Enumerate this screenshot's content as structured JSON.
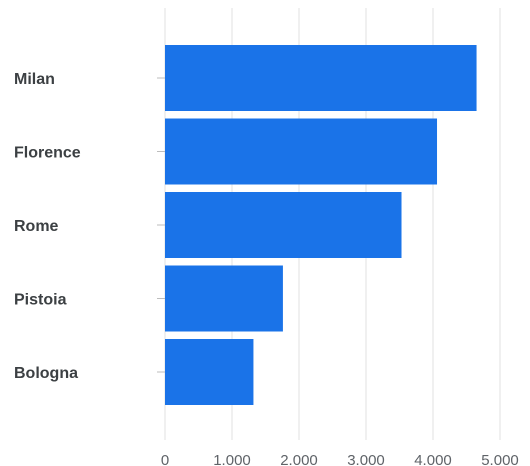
{
  "chart_data": {
    "type": "bar",
    "orientation": "horizontal",
    "categories": [
      "Milan",
      "Florence",
      "Rome",
      "Pistoia",
      "Bologna"
    ],
    "values": [
      4650,
      4060,
      3530,
      1760,
      1320
    ],
    "xlim": [
      0,
      5000
    ],
    "x_ticks": [
      {
        "value": 0,
        "label": "0"
      },
      {
        "value": 1000,
        "label": "1.000"
      },
      {
        "value": 2000,
        "label": "2.000"
      },
      {
        "value": 3000,
        "label": "3.000"
      },
      {
        "value": 4000,
        "label": "4.000"
      },
      {
        "value": 5000,
        "label": "5.000"
      }
    ],
    "title": "",
    "xlabel": "",
    "ylabel": "",
    "grid": true,
    "legend": "none",
    "bar_color": "#1a73e8"
  }
}
